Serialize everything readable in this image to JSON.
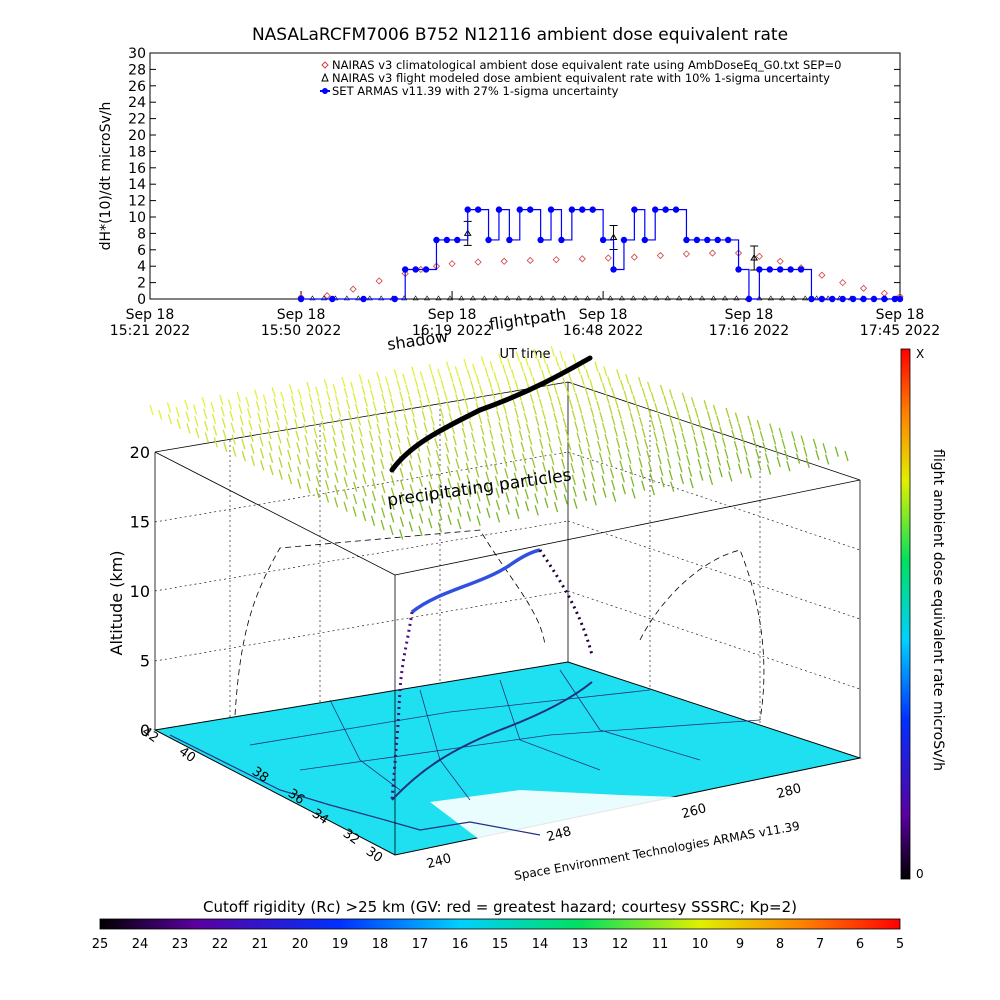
{
  "title": "NASALaRCFM7006   B752 N12116 ambient dose equivalent rate",
  "chart_data": [
    {
      "type": "scatter",
      "ylabel": "dH*(10)/dt microSv/h",
      "xlabel": "UT time",
      "ylim": [
        0,
        30
      ],
      "yticks": [
        "0",
        "2",
        "4",
        "6",
        "8",
        "10",
        "12",
        "14",
        "16",
        "18",
        "20",
        "22",
        "24",
        "26",
        "28",
        "30"
      ],
      "xticks": [
        {
          "day": "Sep 18",
          "time": "15:21 2022",
          "minute": 0
        },
        {
          "day": "Sep 18",
          "time": "15:50 2022",
          "minute": 29
        },
        {
          "day": "Sep 18",
          "time": "16:19 2022",
          "minute": 58
        },
        {
          "day": "Sep 18",
          "time": "16:48 2022",
          "minute": 87
        },
        {
          "day": "Sep 18",
          "time": "17:16 2022",
          "minute": 115
        },
        {
          "day": "Sep 18",
          "time": "17:45 2022",
          "minute": 144
        }
      ],
      "legend_position": "top-right",
      "series": [
        {
          "name": "NAIRAS v3 climatological ambient dose equivalent rate using AmbDoseEq_G0.txt SEP=0",
          "color": "#d04040",
          "marker": "diamond",
          "x": [
            29,
            34,
            39,
            44,
            49,
            52,
            55,
            58,
            63,
            68,
            73,
            78,
            83,
            88,
            93,
            98,
            103,
            108,
            113,
            117,
            121,
            125,
            129,
            133,
            137,
            141,
            144
          ],
          "y": [
            0.2,
            0.4,
            1.2,
            2.2,
            3.1,
            3.6,
            4.0,
            4.3,
            4.5,
            4.6,
            4.7,
            4.8,
            4.9,
            5.0,
            5.1,
            5.3,
            5.5,
            5.6,
            5.6,
            5.2,
            4.6,
            3.8,
            2.9,
            2.0,
            1.3,
            0.7,
            0.3
          ]
        },
        {
          "name": "NAIRAS v3 flight modeled dose ambient equivalent rate with 10% 1-sigma uncertainty",
          "color": "#000000",
          "marker": "triangle",
          "x": [
            61,
            89,
            116
          ],
          "y": [
            8.0,
            7.5,
            5.0
          ]
        },
        {
          "name": "SET ARMAS v11.39 with 27% 1-sigma uncertainty",
          "color": "#0000ff",
          "marker": "circle",
          "x": [
            29,
            35,
            41,
            47,
            49,
            51,
            53,
            55,
            57,
            59,
            61,
            63,
            65,
            67,
            69,
            71,
            73,
            75,
            77,
            79,
            81,
            83,
            85,
            87,
            89,
            91,
            93,
            95,
            97,
            99,
            101,
            103,
            105,
            107,
            109,
            111,
            113,
            115,
            117,
            119,
            121,
            123,
            125,
            127,
            129,
            131,
            133,
            135,
            137,
            139,
            141,
            143,
            144
          ],
          "y": [
            0,
            0,
            0,
            0,
            3.6,
            3.6,
            3.6,
            7.2,
            7.2,
            7.2,
            10.9,
            10.9,
            7.2,
            10.9,
            7.2,
            10.9,
            10.9,
            7.2,
            10.9,
            7.2,
            10.9,
            10.9,
            10.9,
            7.2,
            3.6,
            7.2,
            10.9,
            7.2,
            10.9,
            10.9,
            10.9,
            7.2,
            7.2,
            7.2,
            7.2,
            7.2,
            3.6,
            0,
            3.6,
            3.6,
            3.6,
            3.6,
            3.6,
            0,
            0,
            0,
            0,
            0,
            0,
            0,
            0,
            0,
            0
          ]
        }
      ]
    },
    {
      "type": "other",
      "annotations": [
        "shadow",
        "flightpath",
        "precipitating particles",
        "Space Environment Technologies ARMAS v11.39"
      ],
      "zlabel": "Altitude (km)",
      "zticks": [
        "0",
        "5",
        "10",
        "15",
        "20"
      ],
      "lat_ticks": [
        "30",
        "32",
        "34",
        "36",
        "38",
        "40",
        "42"
      ],
      "lon_ticks": [
        "240",
        "248",
        "260",
        "280"
      ],
      "colorbar_right": {
        "label": "flight ambient dose equivalent rate microSv/h",
        "top": "X",
        "bottom": "0"
      },
      "colorbar_bottom": {
        "label": "Cutoff rigidity (Rc) >25 km (GV: red = greatest hazard; courtesy SSSRC; Kp=2)",
        "ticks": [
          "25",
          "24",
          "23",
          "22",
          "21",
          "20",
          "19",
          "18",
          "17",
          "16",
          "15",
          "14",
          "13",
          "12",
          "11",
          "10",
          "9",
          "8",
          "7",
          "6",
          "5"
        ]
      }
    }
  ]
}
